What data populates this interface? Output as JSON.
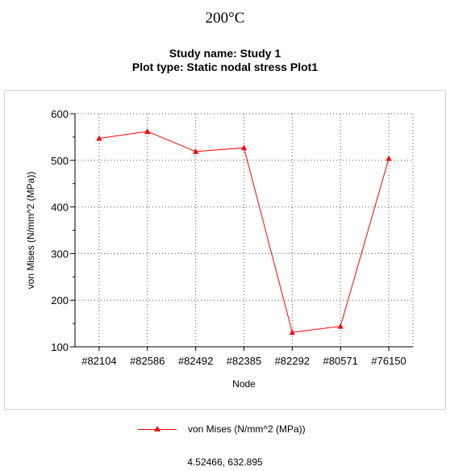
{
  "caption": "200°C",
  "chart_data": {
    "type": "line",
    "title": "Study name: Study 1",
    "subtitle": "Plot type: Static nodal stress Plot1",
    "xlabel": "Node",
    "ylabel": "von Mises (N/mm^2 (MPa))",
    "categories": [
      "#82104",
      "#82586",
      "#82492",
      "#82385",
      "#82292",
      "#80571",
      "#76150"
    ],
    "series": [
      {
        "name": "von Mises (N/mm^2 (MPa))",
        "values": [
          547,
          562,
          519,
          527,
          131,
          144,
          504
        ],
        "color": "#ff0000",
        "marker": "triangle"
      }
    ],
    "ylim": [
      100,
      600
    ],
    "yticks": [
      100,
      200,
      300,
      400,
      500,
      600
    ],
    "grid": true,
    "grid_style": "dotted",
    "legend_position": "bottom"
  },
  "status": {
    "coords": "4.52466, 632.895"
  }
}
